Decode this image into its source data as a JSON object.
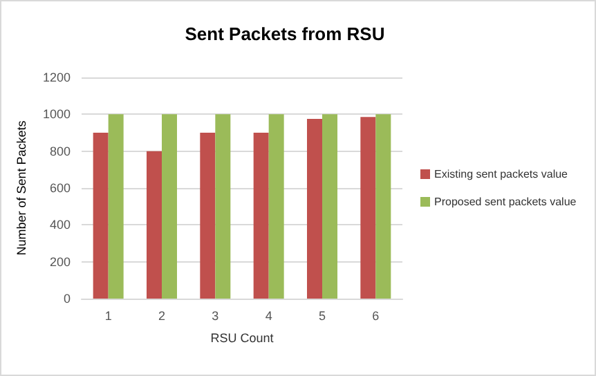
{
  "chart_data": {
    "type": "bar",
    "title": "Sent Packets from RSU",
    "xlabel": "RSU Count",
    "ylabel": "Number of Sent Packets",
    "categories": [
      "1",
      "2",
      "3",
      "4",
      "5",
      "6"
    ],
    "series": [
      {
        "name": "Existing sent packets value",
        "color": "#c0504d",
        "values": [
          900,
          800,
          900,
          900,
          975,
          985
        ]
      },
      {
        "name": "Proposed sent packets value",
        "color": "#9bbb59",
        "values": [
          1000,
          1000,
          1000,
          1000,
          1000,
          1000
        ]
      }
    ],
    "ylim": [
      0,
      1200
    ],
    "yticks": [
      0,
      200,
      400,
      600,
      800,
      1000,
      1200
    ],
    "grid": "y",
    "legend": "right"
  }
}
